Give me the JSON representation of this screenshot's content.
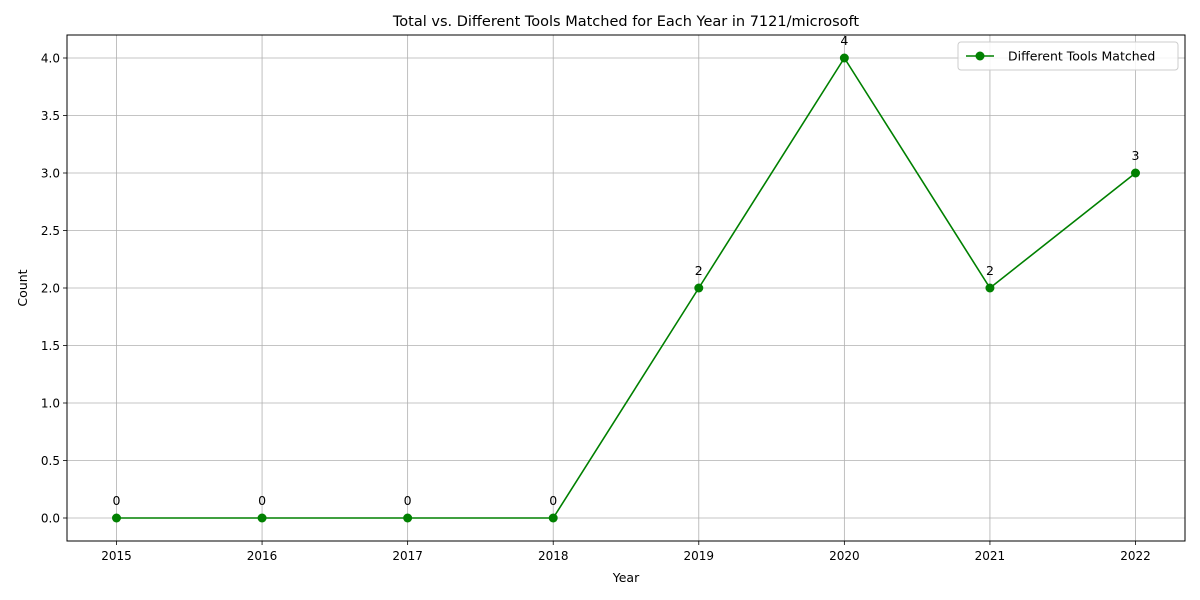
{
  "chart_data": {
    "type": "line",
    "title": "Total vs. Different Tools Matched for Each Year in 7121/microsoft",
    "xlabel": "Year",
    "ylabel": "Count",
    "x": [
      "2015",
      "2016",
      "2017",
      "2018",
      "2019",
      "2020",
      "2021",
      "2022"
    ],
    "series": [
      {
        "name": "Different Tools Matched",
        "values": [
          0,
          0,
          0,
          0,
          2,
          4,
          2,
          3
        ],
        "color": "#008000",
        "marker": "circle"
      }
    ],
    "y_ticks": [
      "0.0",
      "0.5",
      "1.0",
      "1.5",
      "2.0",
      "2.5",
      "3.0",
      "3.5",
      "4.0"
    ],
    "ylim": [
      -0.2,
      4.2
    ],
    "grid": true,
    "legend_position": "top-right",
    "data_labels": true
  }
}
